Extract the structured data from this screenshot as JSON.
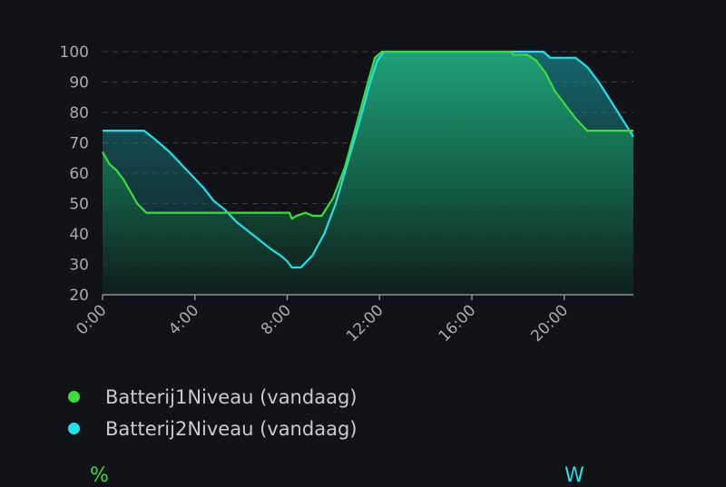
{
  "chart_data": {
    "type": "area",
    "x_ticks": [
      "0:00",
      "4:00",
      "8:00",
      "12:00",
      "16:00",
      "20:00"
    ],
    "y_ticks": [
      20,
      30,
      40,
      50,
      60,
      70,
      80,
      90,
      100
    ],
    "ylim": [
      20,
      100
    ],
    "xlim": [
      0,
      23
    ],
    "grid": true,
    "legend_position": "bottom",
    "series": [
      {
        "name": "Batterij1Niveau (vandaag)",
        "color": "#3ddc3d",
        "points": [
          [
            0,
            67
          ],
          [
            0.3,
            63
          ],
          [
            0.6,
            61
          ],
          [
            0.9,
            58
          ],
          [
            1.2,
            54
          ],
          [
            1.5,
            50
          ],
          [
            1.9,
            47
          ],
          [
            3,
            47
          ],
          [
            4,
            47
          ],
          [
            5,
            47
          ],
          [
            6,
            47
          ],
          [
            7,
            47
          ],
          [
            8.1,
            47
          ],
          [
            8.2,
            45
          ],
          [
            8.4,
            46
          ],
          [
            8.8,
            47
          ],
          [
            9.1,
            46
          ],
          [
            9.5,
            46
          ],
          [
            10,
            52
          ],
          [
            10.5,
            62
          ],
          [
            11,
            76
          ],
          [
            11.5,
            90
          ],
          [
            11.8,
            98
          ],
          [
            12.1,
            100
          ],
          [
            14,
            100
          ],
          [
            16,
            100
          ],
          [
            17.7,
            100
          ],
          [
            17.8,
            99
          ],
          [
            18.4,
            99
          ],
          [
            18.8,
            97
          ],
          [
            19.2,
            93
          ],
          [
            19.6,
            87
          ],
          [
            20.1,
            82
          ],
          [
            20.5,
            78
          ],
          [
            21,
            74
          ],
          [
            22,
            74
          ],
          [
            23,
            74
          ]
        ]
      },
      {
        "name": "Batterij2Niveau (vandaag)",
        "color": "#22e0e8",
        "points": [
          [
            0,
            74
          ],
          [
            1,
            74
          ],
          [
            1.8,
            74
          ],
          [
            2.3,
            71
          ],
          [
            2.9,
            67
          ],
          [
            3.4,
            63
          ],
          [
            3.9,
            59
          ],
          [
            4.4,
            55
          ],
          [
            4.8,
            51
          ],
          [
            5.3,
            48
          ],
          [
            5.8,
            44
          ],
          [
            6.3,
            41
          ],
          [
            6.8,
            38
          ],
          [
            7.3,
            35
          ],
          [
            7.7,
            33
          ],
          [
            8,
            31
          ],
          [
            8.2,
            29
          ],
          [
            8.6,
            29
          ],
          [
            9.1,
            33
          ],
          [
            9.6,
            40
          ],
          [
            10.1,
            50
          ],
          [
            10.6,
            63
          ],
          [
            11.1,
            76
          ],
          [
            11.6,
            90
          ],
          [
            11.9,
            97
          ],
          [
            12.2,
            100
          ],
          [
            14,
            100
          ],
          [
            16,
            100
          ],
          [
            18,
            100
          ],
          [
            19.1,
            100
          ],
          [
            19.4,
            98
          ],
          [
            20.5,
            98
          ],
          [
            21,
            95
          ],
          [
            21.5,
            90
          ],
          [
            22,
            84
          ],
          [
            22.5,
            78
          ],
          [
            23,
            72
          ]
        ]
      }
    ]
  },
  "legend": [
    {
      "label": "Batterij1Niveau (vandaag)",
      "color": "#3ddc3d"
    },
    {
      "label": "Batterij2Niveau (vandaag)",
      "color": "#22e0e8"
    }
  ],
  "footer": {
    "left_unit": "%",
    "right_unit": "W"
  }
}
